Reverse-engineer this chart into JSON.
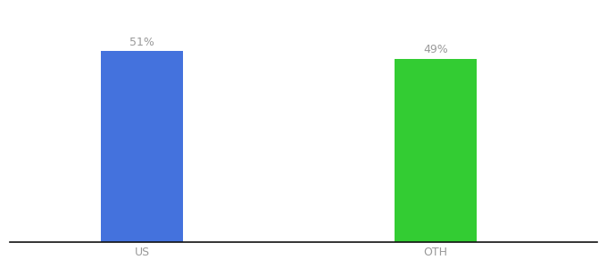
{
  "categories": [
    "US",
    "OTH"
  ],
  "values": [
    51,
    49
  ],
  "bar_colors": [
    "#4472dd",
    "#33cc33"
  ],
  "label_texts": [
    "51%",
    "49%"
  ],
  "background_color": "#ffffff",
  "text_color": "#999999",
  "label_fontsize": 9,
  "tick_fontsize": 9,
  "ylim": [
    0,
    62
  ],
  "bar_width": 0.28,
  "x_positions": [
    1,
    2
  ],
  "xlim": [
    0.55,
    2.55
  ],
  "figsize": [
    6.8,
    3.0
  ],
  "dpi": 100,
  "spine_color": "#111111"
}
